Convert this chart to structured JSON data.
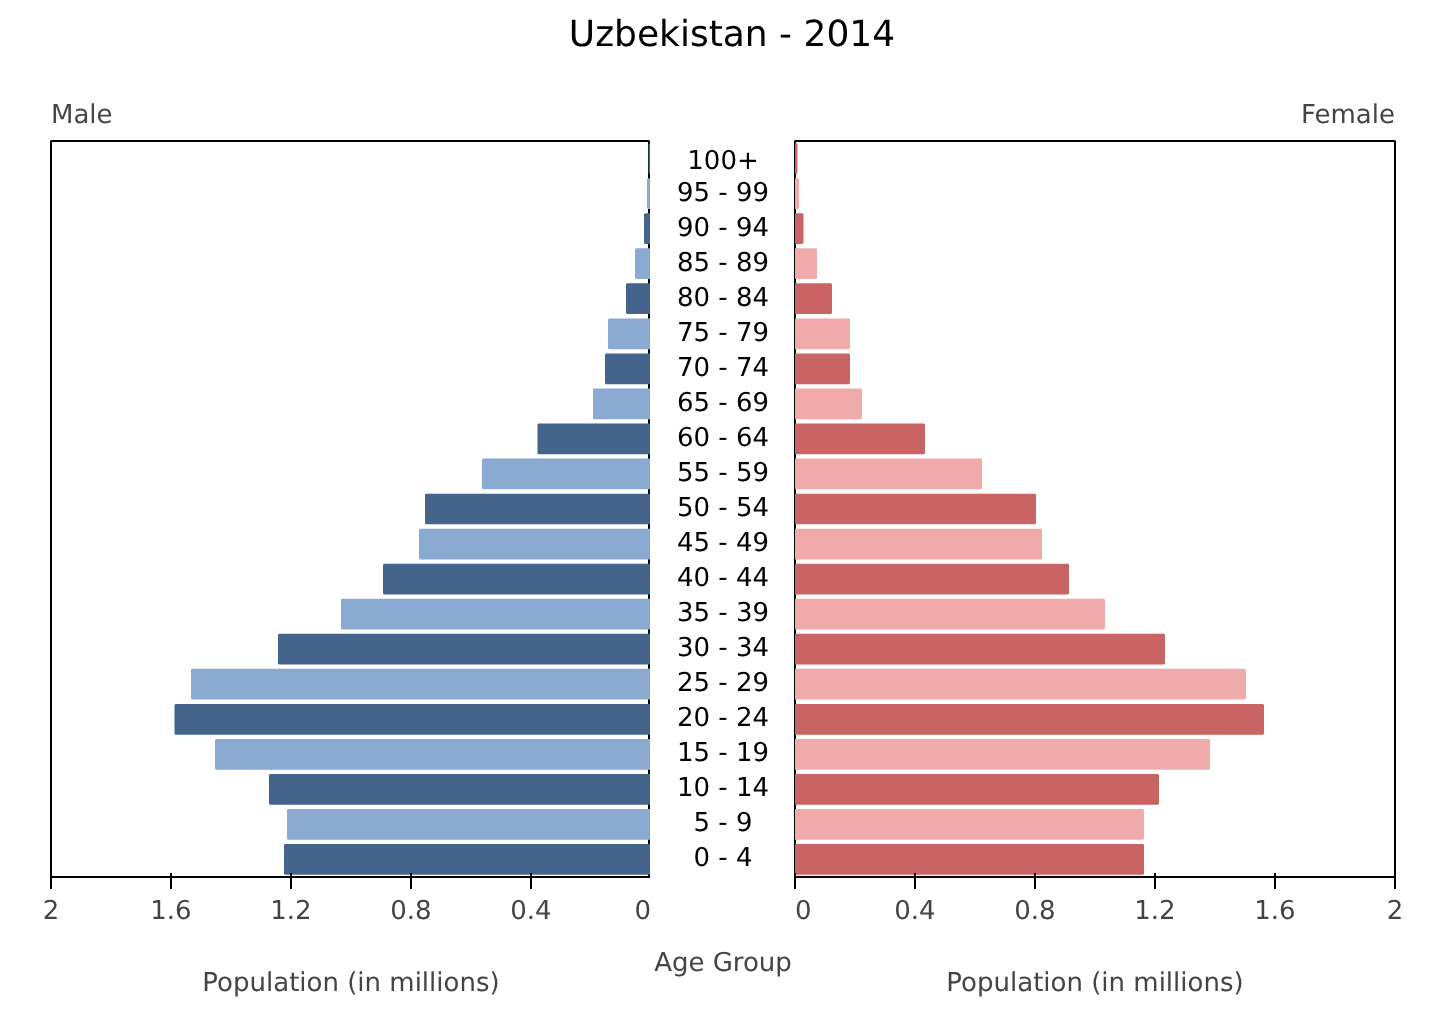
{
  "chart_data": [
    {
      "type": "bar",
      "orientation": "horizontal",
      "title": "Male",
      "xlabel": "Population (in millions)",
      "ylabel": "Age Group",
      "annotations": [
        "Uzbekistan - 2014"
      ],
      "categories": [
        "100+",
        "95 - 99",
        "90 - 94",
        "85 - 89",
        "80 - 84",
        "75 - 79",
        "70 - 74",
        "65 - 69",
        "60 - 64",
        "55 - 59",
        "50 - 54",
        "45 - 49",
        "40 - 44",
        "35 - 39",
        "30 - 34",
        "25 - 29",
        "20 - 24",
        "15 - 19",
        "10 - 14",
        "5 - 9",
        "0 - 4"
      ],
      "values": [
        0.005,
        0.01,
        0.02,
        0.05,
        0.08,
        0.14,
        0.15,
        0.19,
        0.375,
        0.56,
        0.75,
        0.77,
        0.89,
        1.03,
        1.24,
        1.53,
        1.585,
        1.45,
        1.27,
        1.21,
        1.22
      ],
      "colors": [
        "#44648c",
        "#8aaad2",
        "#44648c",
        "#8aaad2",
        "#44648c",
        "#8aaad2",
        "#44648c",
        "#8aaad2",
        "#44648c",
        "#8aaad2",
        "#44648c",
        "#8aaad2",
        "#44648c",
        "#8aaad2",
        "#44648c",
        "#8aaad2",
        "#44648c",
        "#8aaad2",
        "#44648c",
        "#8aaad2",
        "#44648c"
      ],
      "xlim": [
        2,
        0
      ],
      "xticks": [
        2,
        1.6,
        1.2,
        0.8,
        0.4,
        0
      ]
    },
    {
      "type": "bar",
      "orientation": "horizontal",
      "title": "Female",
      "xlabel": "Population (in millions)",
      "values": [
        0.005,
        0.01,
        0.025,
        0.07,
        0.12,
        0.18,
        0.18,
        0.22,
        0.43,
        0.62,
        0.8,
        0.82,
        0.91,
        1.03,
        1.23,
        1.5,
        1.56,
        1.38,
        1.21,
        1.16,
        1.16
      ],
      "colors": [
        "#c86464",
        "#f0aaaa",
        "#c86464",
        "#f0aaaa",
        "#c86464",
        "#f0aaaa",
        "#c86464",
        "#f0aaaa",
        "#c86464",
        "#f0aaaa",
        "#c86464",
        "#f0aaaa",
        "#c86464",
        "#f0aaaa",
        "#c86464",
        "#f0aaaa",
        "#c86464",
        "#f0aaaa",
        "#c86464",
        "#f0aaaa",
        "#c86464"
      ],
      "xlim": [
        0,
        2
      ],
      "xticks": [
        0,
        0.4,
        0.8,
        1.2,
        1.6,
        2
      ]
    }
  ]
}
